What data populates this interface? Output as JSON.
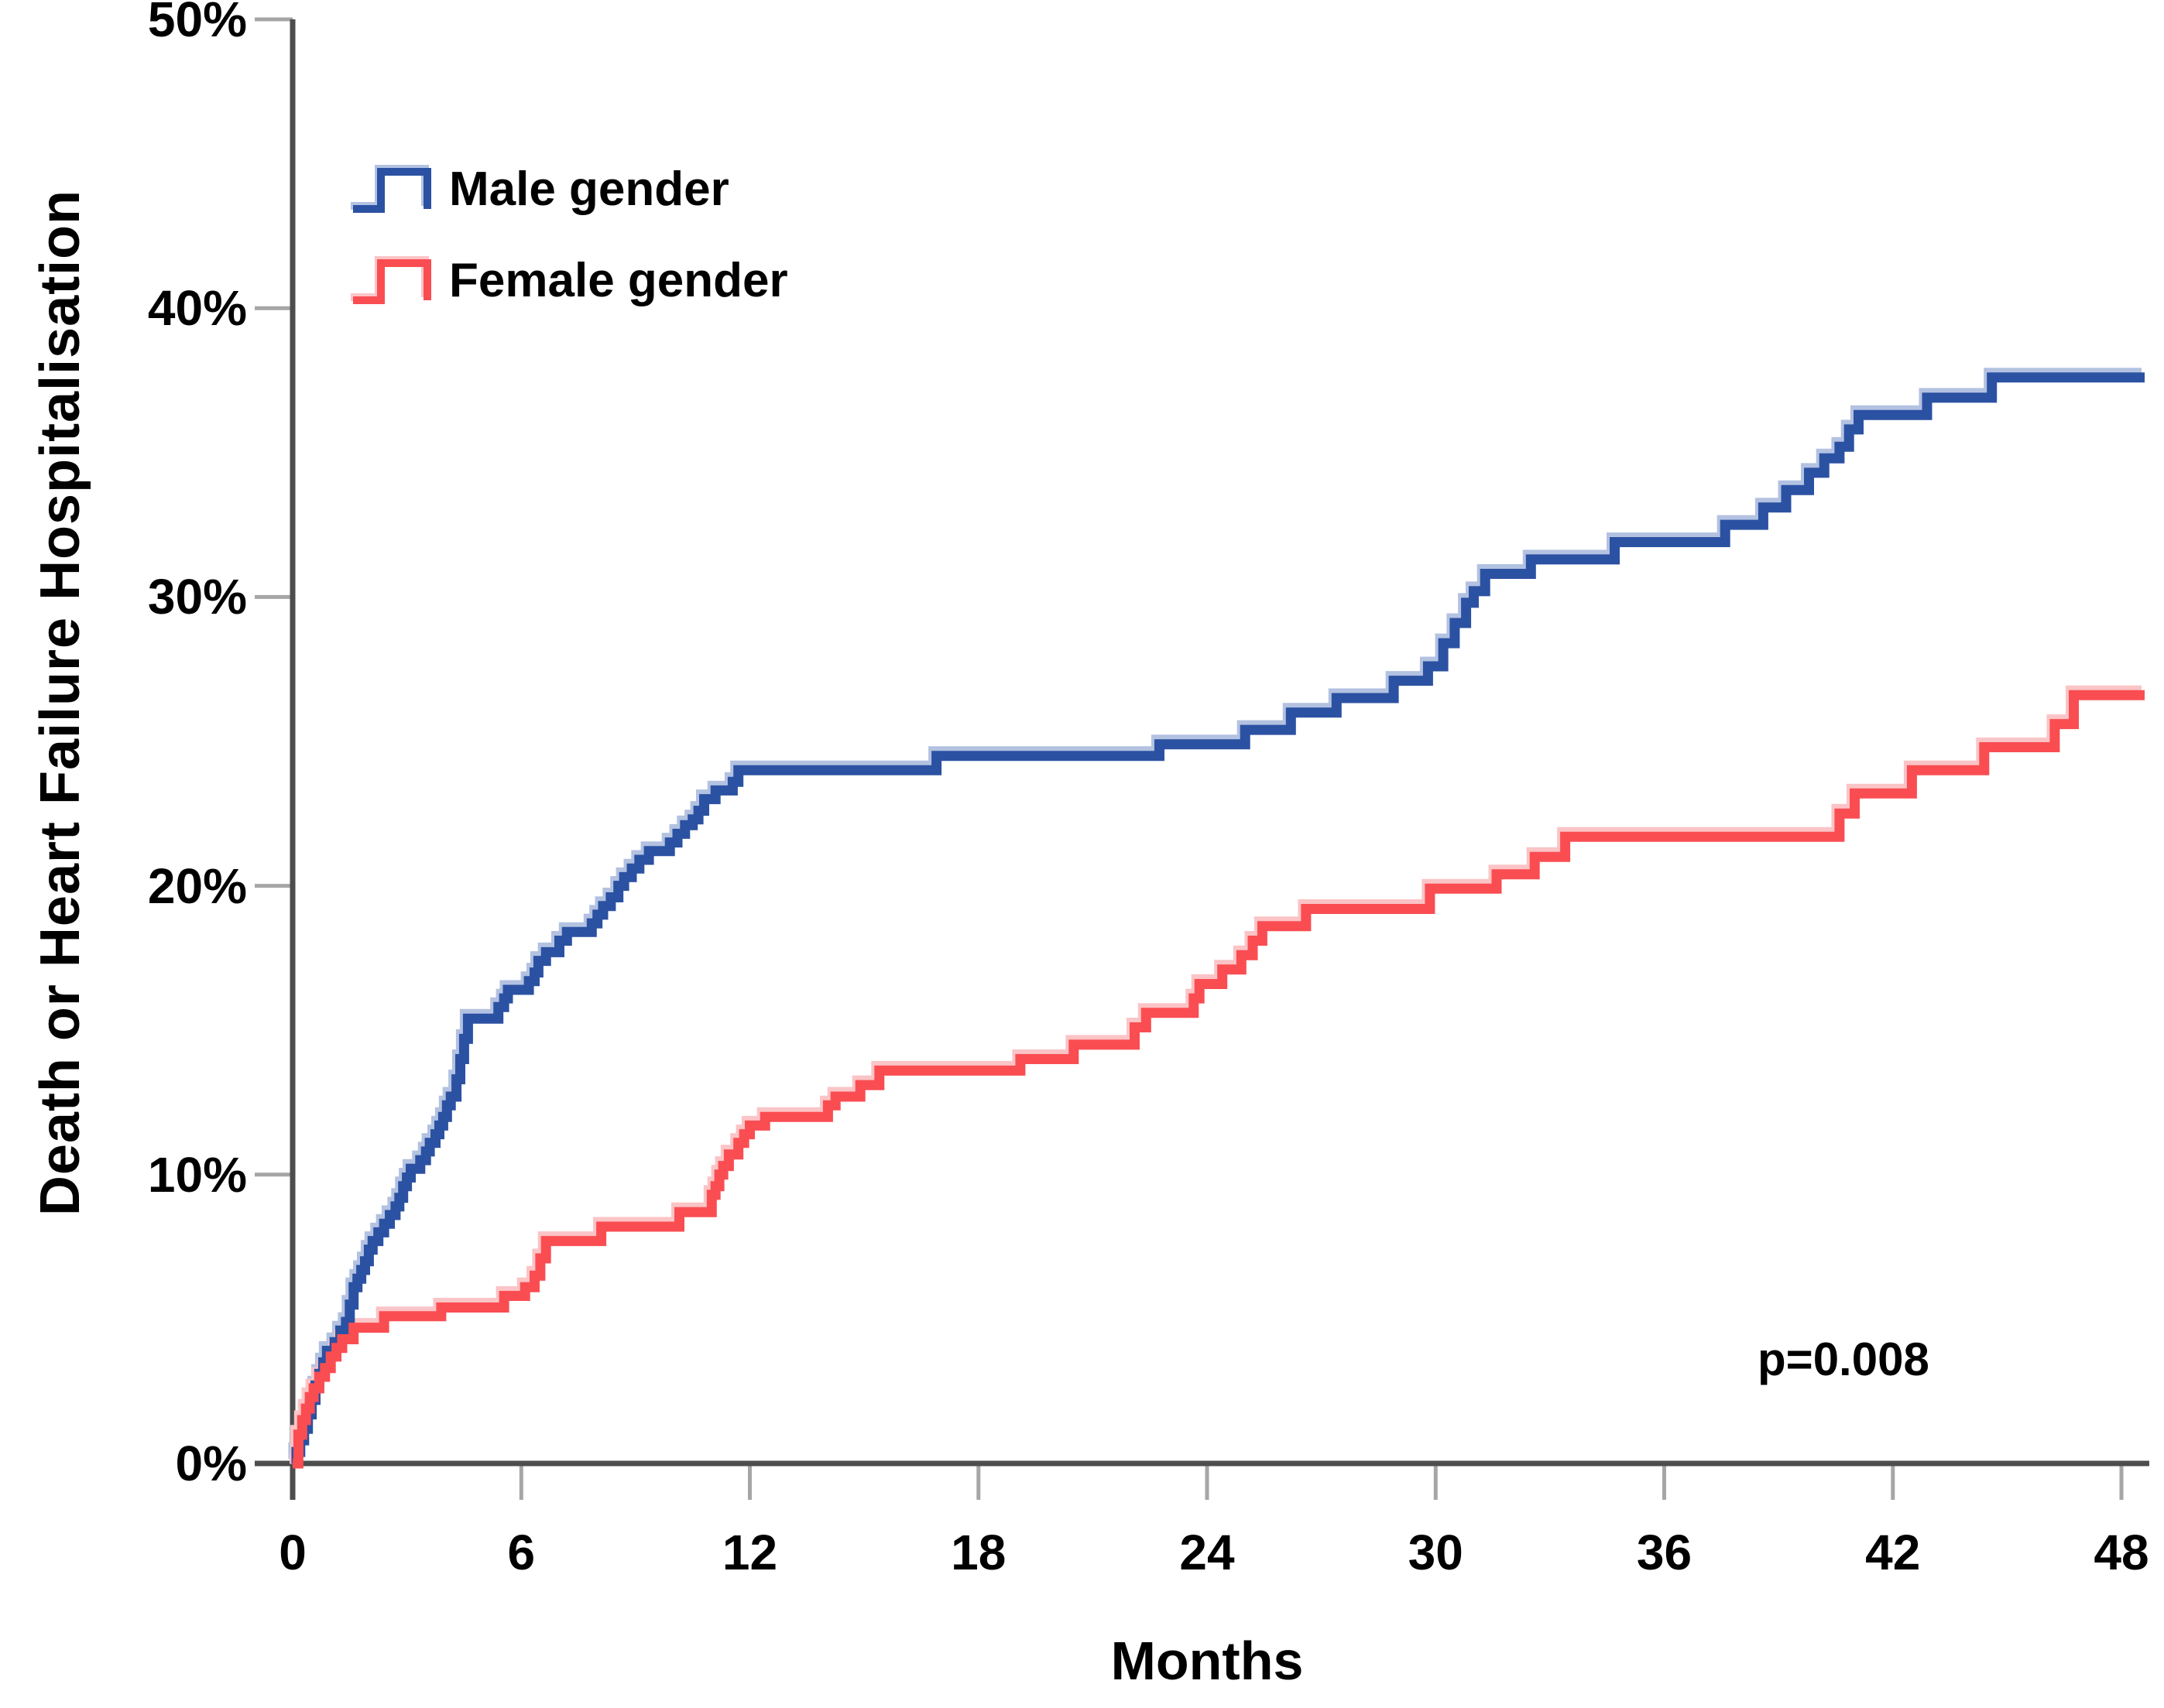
{
  "figure": {
    "background": "#ffffff"
  },
  "y_axis": {
    "title": "Death or Heart Failure Hospitalisation",
    "tick_labels": [
      "50%",
      "40%",
      "30%",
      "20%",
      "10%",
      "0%"
    ],
    "tick_values": [
      50,
      40,
      30,
      20,
      10,
      0
    ],
    "min": 0,
    "max": 50,
    "axis_color": "#4d4d4d",
    "tick_color": "#a6a6a6"
  },
  "x_axis": {
    "title": "Months",
    "tick_labels": [
      "0",
      "6",
      "12",
      "18",
      "24",
      "30",
      "36",
      "42",
      "48"
    ],
    "tick_values": [
      0,
      6,
      12,
      18,
      24,
      30,
      36,
      42,
      48
    ],
    "min": 0,
    "max": 48,
    "axis_color": "#4d4d4d",
    "tick_color": "#a6a6a6"
  },
  "legend": {
    "position": "top-left",
    "items": [
      {
        "label": "Male gender",
        "color": "#2b51a2",
        "halo": "#b3c2e1"
      },
      {
        "label": "Female gender",
        "color": "#fa4d52",
        "halo": "#fbc4c6"
      }
    ]
  },
  "annotation": {
    "p_value": "p=0.008"
  },
  "chart_data": {
    "type": "line",
    "subtype": "kaplan-meier-step",
    "title": "",
    "xlabel": "Months",
    "ylabel": "Death or Heart Failure Hospitalisation",
    "xlim": [
      0,
      48
    ],
    "ylim_percent": [
      0,
      50
    ],
    "grid": false,
    "legend_position": "top-left",
    "series": [
      {
        "name": "Male gender",
        "color": "#2b51a2",
        "points_month_percent": [
          [
            0,
            0
          ],
          [
            0.1,
            0.4
          ],
          [
            0.2,
            0.8
          ],
          [
            0.3,
            1.2
          ],
          [
            0.4,
            1.7
          ],
          [
            0.5,
            2.2
          ],
          [
            0.6,
            2.7
          ],
          [
            0.7,
            3.1
          ],
          [
            0.8,
            3.5
          ],
          [
            0.9,
            3.9
          ],
          [
            1.1,
            4.2
          ],
          [
            1.25,
            4.6
          ],
          [
            1.4,
            4.9
          ],
          [
            1.5,
            5.5
          ],
          [
            1.6,
            6.1
          ],
          [
            1.7,
            6.4
          ],
          [
            1.8,
            6.7
          ],
          [
            1.9,
            7.0
          ],
          [
            2.0,
            7.4
          ],
          [
            2.1,
            7.7
          ],
          [
            2.25,
            8.0
          ],
          [
            2.4,
            8.3
          ],
          [
            2.55,
            8.6
          ],
          [
            2.7,
            8.9
          ],
          [
            2.8,
            9.2
          ],
          [
            2.9,
            9.6
          ],
          [
            3.0,
            9.9
          ],
          [
            3.1,
            10.2
          ],
          [
            3.35,
            10.5
          ],
          [
            3.5,
            10.8
          ],
          [
            3.6,
            11.1
          ],
          [
            3.75,
            11.4
          ],
          [
            3.85,
            11.7
          ],
          [
            3.95,
            12.0
          ],
          [
            4.05,
            12.4
          ],
          [
            4.15,
            12.7
          ],
          [
            4.3,
            13.3
          ],
          [
            4.4,
            14.0
          ],
          [
            4.5,
            14.7
          ],
          [
            4.6,
            15.4
          ],
          [
            5.4,
            15.8
          ],
          [
            5.55,
            16.1
          ],
          [
            5.65,
            16.4
          ],
          [
            6.2,
            16.7
          ],
          [
            6.35,
            17.0
          ],
          [
            6.45,
            17.4
          ],
          [
            6.65,
            17.7
          ],
          [
            7.0,
            18.1
          ],
          [
            7.2,
            18.4
          ],
          [
            7.85,
            18.7
          ],
          [
            8.0,
            19.0
          ],
          [
            8.15,
            19.3
          ],
          [
            8.35,
            19.6
          ],
          [
            8.55,
            20.0
          ],
          [
            8.7,
            20.3
          ],
          [
            8.9,
            20.6
          ],
          [
            9.1,
            20.9
          ],
          [
            9.35,
            21.2
          ],
          [
            9.9,
            21.5
          ],
          [
            10.1,
            21.8
          ],
          [
            10.3,
            22.1
          ],
          [
            10.5,
            22.3
          ],
          [
            10.65,
            22.6
          ],
          [
            10.8,
            23.0
          ],
          [
            11.1,
            23.3
          ],
          [
            11.55,
            23.6
          ],
          [
            11.7,
            24.0
          ],
          [
            16.9,
            24.5
          ],
          [
            22.75,
            24.9
          ],
          [
            25.0,
            25.4
          ],
          [
            26.2,
            26.0
          ],
          [
            27.4,
            26.5
          ],
          [
            28.9,
            27.1
          ],
          [
            29.8,
            27.6
          ],
          [
            30.2,
            28.4
          ],
          [
            30.5,
            29.1
          ],
          [
            30.8,
            29.8
          ],
          [
            31.0,
            30.2
          ],
          [
            31.3,
            30.8
          ],
          [
            32.5,
            31.3
          ],
          [
            34.7,
            31.9
          ],
          [
            37.6,
            32.5
          ],
          [
            38.6,
            33.1
          ],
          [
            39.2,
            33.7
          ],
          [
            39.8,
            34.3
          ],
          [
            40.2,
            34.8
          ],
          [
            40.6,
            35.2
          ],
          [
            40.85,
            35.8
          ],
          [
            41.1,
            36.3
          ],
          [
            42.9,
            36.9
          ],
          [
            44.6,
            37.6
          ],
          [
            48,
            37.6
          ]
        ]
      },
      {
        "name": "Female gender",
        "color": "#fa4d52",
        "points_month_percent": [
          [
            0,
            0
          ],
          [
            0.15,
            1.0
          ],
          [
            0.25,
            1.5
          ],
          [
            0.35,
            1.9
          ],
          [
            0.45,
            2.3
          ],
          [
            0.55,
            2.6
          ],
          [
            0.7,
            3.0
          ],
          [
            0.85,
            3.3
          ],
          [
            1.0,
            3.7
          ],
          [
            1.15,
            4.0
          ],
          [
            1.3,
            4.3
          ],
          [
            1.6,
            4.7
          ],
          [
            2.4,
            5.1
          ],
          [
            3.9,
            5.4
          ],
          [
            5.55,
            5.8
          ],
          [
            6.1,
            6.1
          ],
          [
            6.35,
            6.5
          ],
          [
            6.5,
            7.1
          ],
          [
            6.65,
            7.7
          ],
          [
            8.1,
            8.2
          ],
          [
            10.15,
            8.7
          ],
          [
            11.0,
            9.3
          ],
          [
            11.1,
            9.6
          ],
          [
            11.2,
            10.0
          ],
          [
            11.3,
            10.3
          ],
          [
            11.45,
            10.7
          ],
          [
            11.7,
            11.1
          ],
          [
            11.85,
            11.4
          ],
          [
            12.0,
            11.7
          ],
          [
            12.4,
            12.0
          ],
          [
            14.05,
            12.4
          ],
          [
            14.25,
            12.7
          ],
          [
            14.9,
            13.1
          ],
          [
            15.4,
            13.6
          ],
          [
            19.1,
            14.0
          ],
          [
            20.5,
            14.5
          ],
          [
            22.1,
            15.1
          ],
          [
            22.4,
            15.6
          ],
          [
            23.65,
            16.1
          ],
          [
            23.8,
            16.6
          ],
          [
            24.4,
            17.1
          ],
          [
            24.9,
            17.6
          ],
          [
            25.2,
            18.1
          ],
          [
            25.45,
            18.6
          ],
          [
            26.6,
            19.2
          ],
          [
            29.85,
            19.9
          ],
          [
            31.6,
            20.4
          ],
          [
            32.6,
            21.0
          ],
          [
            33.4,
            21.7
          ],
          [
            40.6,
            22.5
          ],
          [
            41.0,
            23.2
          ],
          [
            42.5,
            24.0
          ],
          [
            44.4,
            24.8
          ],
          [
            46.25,
            25.6
          ],
          [
            46.75,
            26.6
          ],
          [
            48,
            26.6
          ]
        ]
      }
    ],
    "annotations": [
      {
        "text": "p=0.008",
        "x_month": 41,
        "y_percent": 3.5
      }
    ]
  }
}
